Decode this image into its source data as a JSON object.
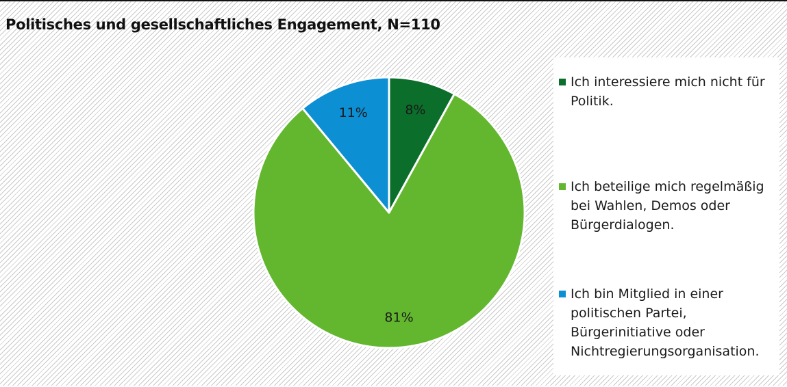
{
  "chart_data": {
    "type": "pie",
    "title": "Politisches und gesellschaftliches Engagement, N=110",
    "slices": [
      {
        "label": "Ich interessiere mich nicht für Politik.",
        "value": 8,
        "display": "8%",
        "color": "#0b6e2a"
      },
      {
        "label": "Ich beteilige mich regelmäßig bei Wahlen, Demos oder Bürgerdialogen.",
        "value": 81,
        "display": "81%",
        "color": "#63b72f"
      },
      {
        "label": "Ich bin Mitglied in einer politischen Partei, Bürgerinitiative oder Nichtregierungsorganisation.",
        "value": 11,
        "display": "11%",
        "color": "#0d8fd4"
      }
    ],
    "legend_position": "right",
    "grid": false
  }
}
